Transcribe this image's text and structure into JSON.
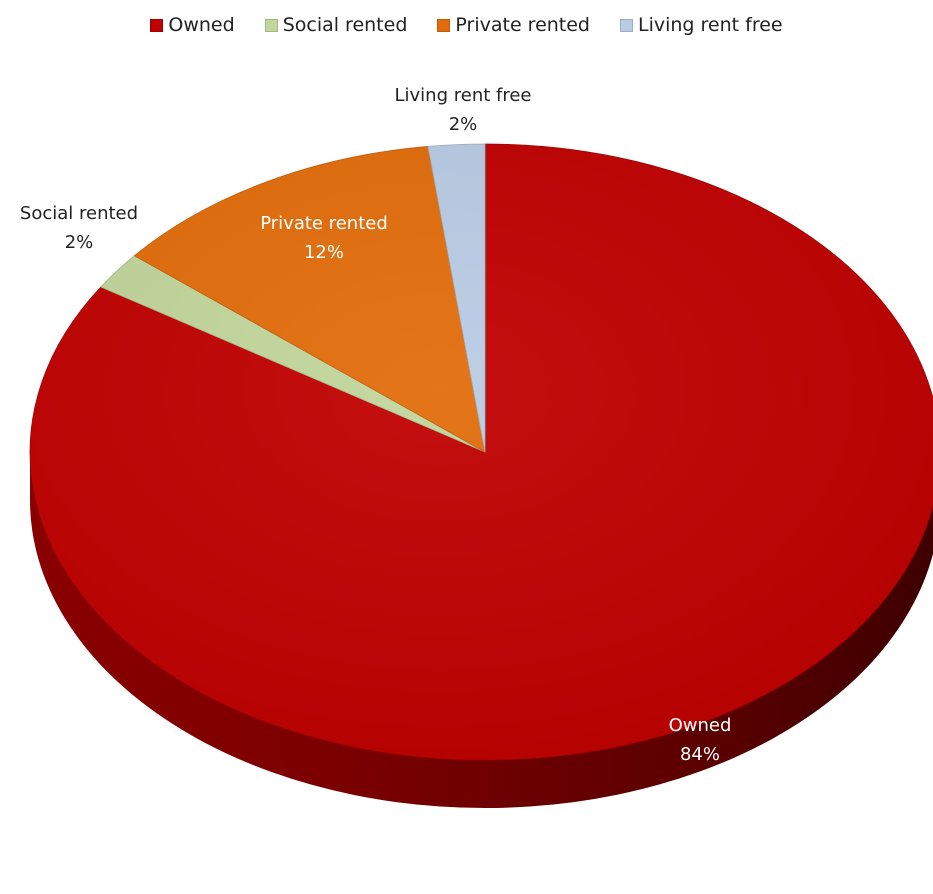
{
  "chart_data": {
    "type": "pie",
    "style": "3d",
    "legend_position": "top",
    "slices": [
      {
        "label": "Owned",
        "value": 84,
        "percent_label": "84%",
        "color": "#C00000"
      },
      {
        "label": "Social rented",
        "value": 2,
        "percent_label": "2%",
        "color": "#C2D69B"
      },
      {
        "label": "Private rented",
        "value": 12,
        "percent_label": "12%",
        "color": "#E36C0A"
      },
      {
        "label": "Living rent free",
        "value": 2,
        "percent_label": "2%",
        "color": "#B8CCE4"
      }
    ]
  }
}
